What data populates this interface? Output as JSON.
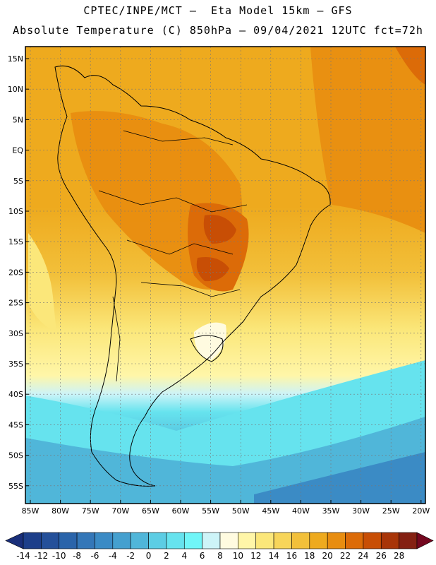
{
  "header": {
    "line1": "CPTEC/INPE/MCT —  Eta Model 15km — GFS",
    "line2": "Absolute Temperature (C) 850hPa — 09/04/2021 12UTC fct=72h"
  },
  "map": {
    "lat_labels": [
      "15N",
      "10N",
      "5N",
      "EQ",
      "5S",
      "10S",
      "15S",
      "20S",
      "25S",
      "30S",
      "35S",
      "40S",
      "45S",
      "50S",
      "55S"
    ],
    "lon_labels": [
      "85W",
      "80W",
      "75W",
      "70W",
      "65W",
      "60W",
      "55W",
      "50W",
      "45W",
      "40W",
      "35W",
      "30W",
      "25W",
      "20W"
    ]
  },
  "colorbar": {
    "labels": [
      "-14",
      "-12",
      "-10",
      "-8",
      "-6",
      "-4",
      "-2",
      "0",
      "2",
      "4",
      "6",
      "8",
      "10",
      "12",
      "14",
      "16",
      "18",
      "20",
      "22",
      "24",
      "26",
      "28"
    ],
    "colors": [
      "#1d3f8a",
      "#24509a",
      "#2a64aa",
      "#3477b8",
      "#3b8bc5",
      "#45a0cf",
      "#50b6d9",
      "#5ccde4",
      "#66e3ee",
      "#70f6f8",
      "#cdf4f8",
      "#fffbe0",
      "#fff6a8",
      "#fbe77a",
      "#f7d55a",
      "#f2c03a",
      "#eeaa1e",
      "#e88d10",
      "#dc6b08",
      "#c84e05",
      "#a83508",
      "#842012"
    ],
    "under_color": "#1a2f7a",
    "over_color": "#74071f"
  }
}
